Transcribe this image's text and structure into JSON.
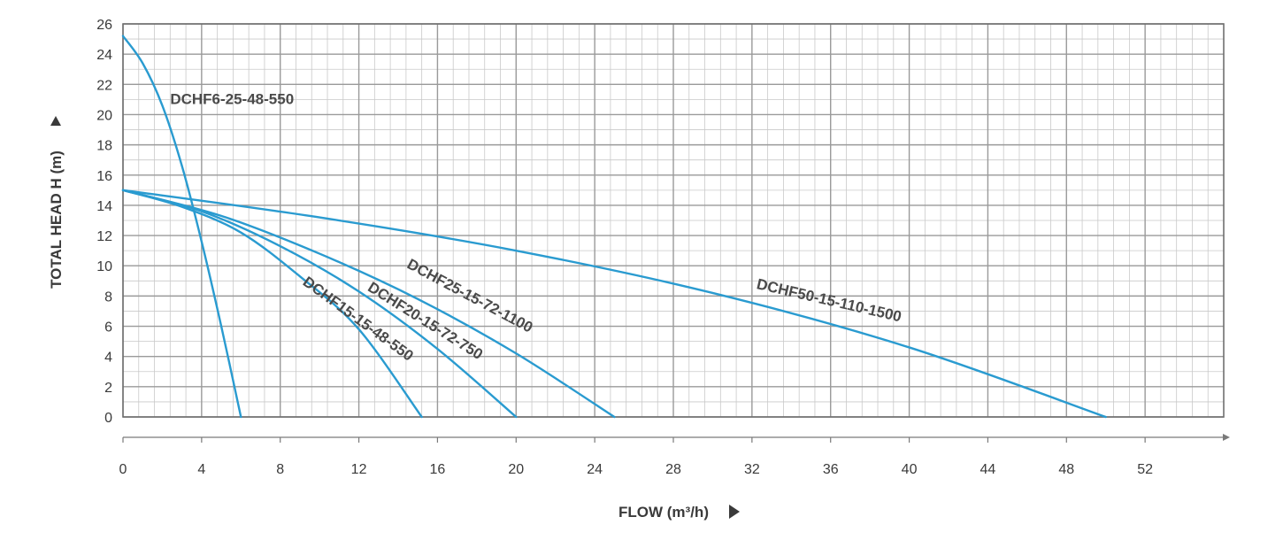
{
  "chart_data": {
    "type": "line",
    "xlabel": "FLOW (m³/h)",
    "ylabel": "TOTAL HEAD H (m)",
    "xlim": [
      0,
      56
    ],
    "ylim": [
      0,
      26
    ],
    "x_ticks": [
      0,
      4,
      8,
      12,
      16,
      20,
      24,
      28,
      32,
      36,
      40,
      44,
      48,
      52
    ],
    "y_ticks": [
      0,
      2,
      4,
      6,
      8,
      10,
      12,
      14,
      16,
      18,
      20,
      22,
      24,
      26
    ],
    "x_minor_step": 0.8,
    "y_minor_step": 1,
    "grid": true,
    "line_color": "#2a9bd0",
    "grid_color": "#9a9a9a",
    "series": [
      {
        "name": "DCHF6-25-48-550",
        "points": [
          [
            0,
            25.2
          ],
          [
            1,
            23.4
          ],
          [
            2,
            20.6
          ],
          [
            3,
            16.6
          ],
          [
            4,
            11.6
          ],
          [
            5,
            6.0
          ],
          [
            6,
            0
          ]
        ]
      },
      {
        "name": "DCHF15-15-48-550",
        "points": [
          [
            0,
            15.0
          ],
          [
            3,
            13.9
          ],
          [
            6,
            12.2
          ],
          [
            9,
            9.3
          ],
          [
            12,
            5.8
          ],
          [
            15.2,
            0
          ]
        ]
      },
      {
        "name": "DCHF20-15-72-750",
        "points": [
          [
            0,
            15.0
          ],
          [
            4,
            13.6
          ],
          [
            8,
            11.3
          ],
          [
            12,
            8.3
          ],
          [
            16,
            4.5
          ],
          [
            20,
            0
          ]
        ]
      },
      {
        "name": "DCHF25-15-72-1100",
        "points": [
          [
            0,
            15.0
          ],
          [
            5,
            13.3
          ],
          [
            10,
            10.8
          ],
          [
            15,
            7.8
          ],
          [
            20,
            4.2
          ],
          [
            25,
            0
          ]
        ]
      },
      {
        "name": "DCHF50-15-110-1500",
        "points": [
          [
            0,
            15.0
          ],
          [
            10,
            13.2
          ],
          [
            20,
            11.0
          ],
          [
            30,
            8.2
          ],
          [
            40,
            4.6
          ],
          [
            50,
            0
          ]
        ]
      }
    ]
  }
}
